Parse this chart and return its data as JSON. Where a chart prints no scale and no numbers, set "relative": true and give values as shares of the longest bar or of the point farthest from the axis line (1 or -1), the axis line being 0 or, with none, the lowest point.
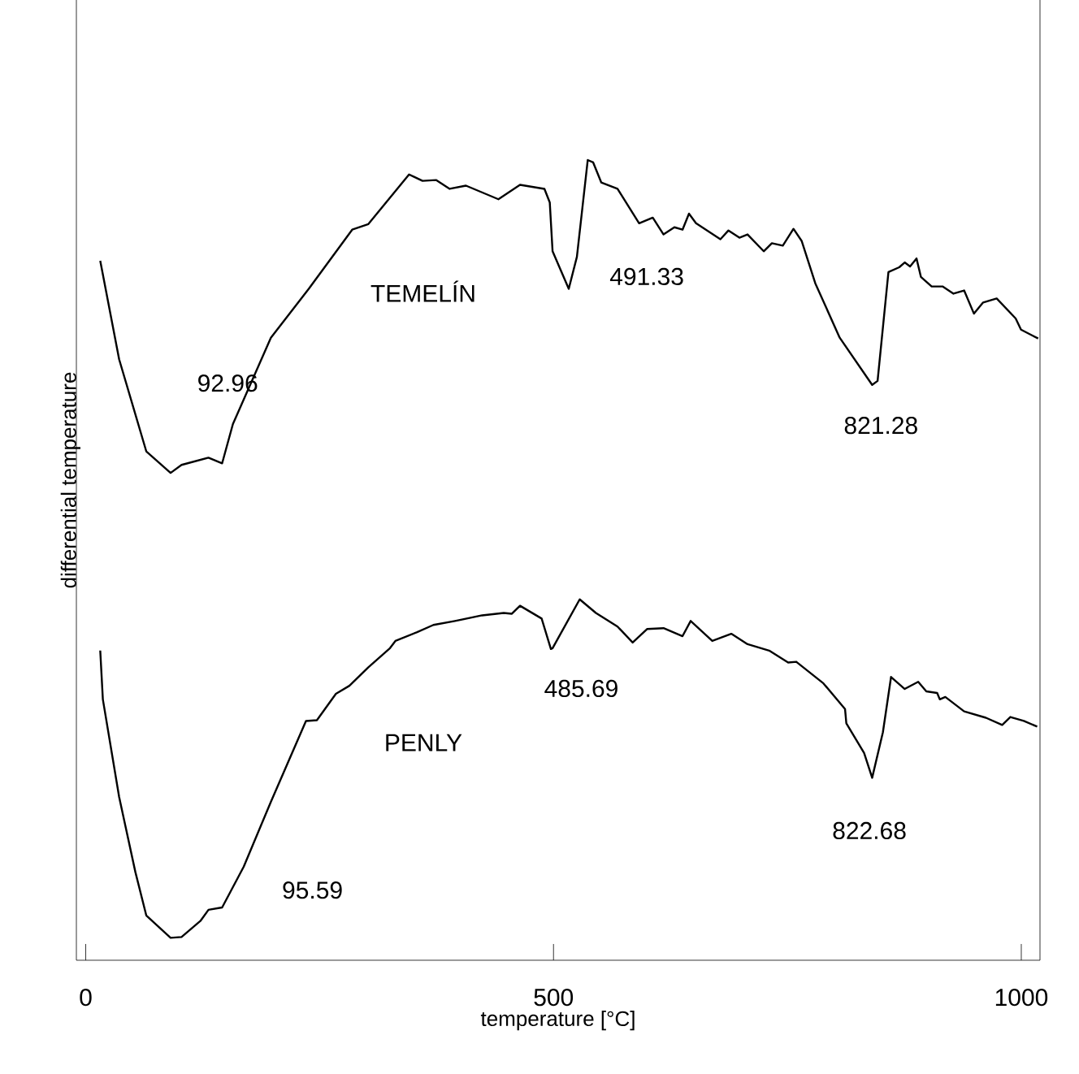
{
  "chart_data": {
    "type": "line",
    "relative": true,
    "xlabel": "temperature [°C]",
    "ylabel": "differential temperature",
    "xlim": [
      -10,
      1020
    ],
    "xticks": [
      0,
      500,
      1000
    ],
    "grid": false,
    "marker": "none",
    "line_style": "solid",
    "tick_labels": "x",
    "series": [
      {
        "name": "TEMELÍN",
        "color": "#000000",
        "x": [
          15.5,
          35.7,
          64.7,
          90.7,
          102.4,
          131.2,
          145.8,
          157.3,
          197.9,
          238.4,
          284.8,
          302.1,
          345.6,
          360,
          374.4,
          389,
          406.4,
          441.1,
          464.2,
          490.3,
          496,
          499,
          516.3,
          525,
          536.6,
          542.4,
          551,
          568.4,
          591.5,
          606.1,
          617.6,
          629.2,
          637.9,
          644.8,
          652.3,
          678.4,
          687,
          698.7,
          707.4,
          724.7,
          733.4,
          745.1,
          756.5,
          765.2,
          779.8,
          805.9,
          840.6,
          846.4,
          858,
          869.5,
          875.4,
          881.1,
          888,
          892.7,
          904.2,
          915.8,
          927.5,
          938.9,
          949.4,
          959.2,
          973.7,
          994,
          999.7,
          1011.4,
          1018
        ],
        "values": [
          0.874,
          0.751,
          0.636,
          0.609,
          0.619,
          0.628,
          0.621,
          0.67,
          0.778,
          0.839,
          0.913,
          0.92,
          0.982,
          0.974,
          0.975,
          0.964,
          0.968,
          0.951,
          0.969,
          0.964,
          0.947,
          0.886,
          0.839,
          0.879,
          1.0,
          0.997,
          0.972,
          0.964,
          0.921,
          0.928,
          0.907,
          0.916,
          0.913,
          0.933,
          0.921,
          0.901,
          0.912,
          0.903,
          0.907,
          0.886,
          0.896,
          0.893,
          0.914,
          0.899,
          0.846,
          0.778,
          0.719,
          0.724,
          0.86,
          0.866,
          0.872,
          0.867,
          0.877,
          0.854,
          0.842,
          0.842,
          0.833,
          0.837,
          0.808,
          0.822,
          0.827,
          0.802,
          0.788,
          0.781,
          0.777
        ]
      },
      {
        "name": "PENLY",
        "color": "#000000",
        "x": [
          15.5,
          18.3,
          35.7,
          53.1,
          64.7,
          90.7,
          102.4,
          122.5,
          131.2,
          145.8,
          168.9,
          197.9,
          235.4,
          247.1,
          267.4,
          281.8,
          302.1,
          325.2,
          331,
          354.2,
          371.6,
          394.7,
          423.7,
          446.8,
          455.5,
          464.2,
          487.3,
          497.2,
          499,
          528,
          545.3,
          568.4,
          584.6,
          600.2,
          617.6,
          637.9,
          646.6,
          669.7,
          690,
          707.4,
          730.5,
          750.8,
          759.5,
          788.5,
          811.6,
          813,
          832,
          840.6,
          852.1,
          860.8,
          875.4,
          889.8,
          898.5,
          910.1,
          912.9,
          918.8,
          938.9,
          962.2,
          979.6,
          988.3,
          1002.7,
          1017
        ],
        "values": [
          0.387,
          0.326,
          0.204,
          0.11,
          0.056,
          0.028,
          0.029,
          0.049,
          0.063,
          0.066,
          0.117,
          0.198,
          0.299,
          0.3,
          0.333,
          0.343,
          0.366,
          0.39,
          0.399,
          0.41,
          0.419,
          0.424,
          0.431,
          0.434,
          0.433,
          0.443,
          0.427,
          0.389,
          0.39,
          0.451,
          0.434,
          0.417,
          0.397,
          0.414,
          0.415,
          0.405,
          0.424,
          0.399,
          0.408,
          0.395,
          0.387,
          0.372,
          0.373,
          0.346,
          0.314,
          0.296,
          0.259,
          0.228,
          0.285,
          0.354,
          0.339,
          0.348,
          0.336,
          0.334,
          0.326,
          0.329,
          0.311,
          0.303,
          0.294,
          0.304,
          0.299,
          0.292
        ]
      }
    ],
    "annotations": [
      "92.96",
      "491.33",
      "821.28",
      "95.59",
      "485.69",
      "822.68"
    ]
  }
}
